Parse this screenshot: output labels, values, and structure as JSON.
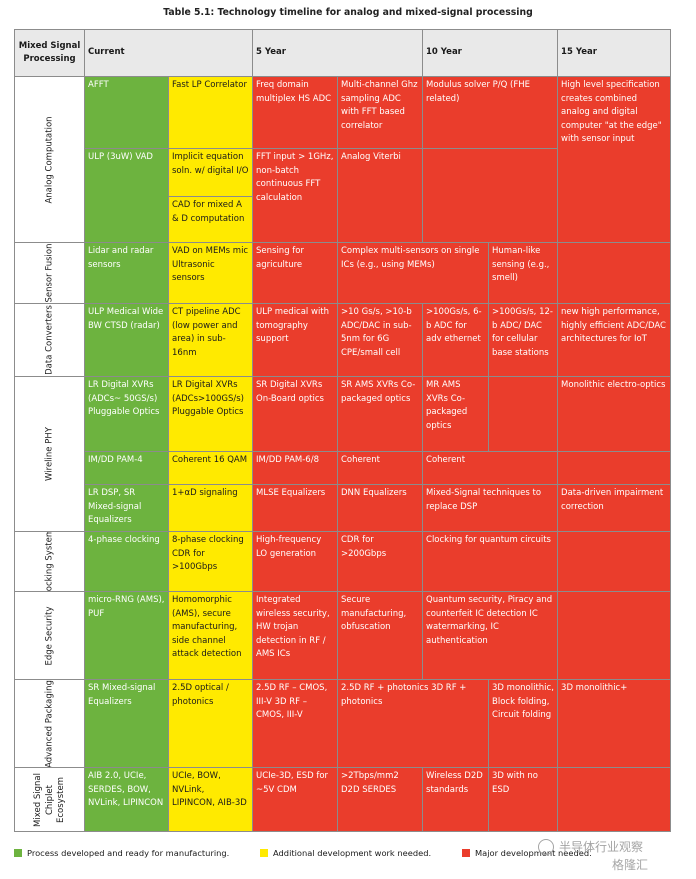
{
  "title": "Table 5.1: Technology timeline for analog and mixed-signal processing",
  "headers": {
    "category": "Mixed Signal Processing",
    "current": "Current",
    "y5": "5 Year",
    "y10": "10 Year",
    "y15": "15 Year"
  },
  "rows": {
    "analog": {
      "label": "Analog Computation",
      "c1": "AFFT",
      "c2": "Fast LP Correlator",
      "c3": "Freq domain multiplex HS ADC",
      "c4": "Multi-channel Ghz sampling ADC with FFT based correlator",
      "c5": "Modulus solver P/Q (FHE related)",
      "c6": "High level specification creates combined analog and digital computer \"at the edge\" with sensor input",
      "c7": "ULP (3uW) VAD",
      "c8": "Implicit equation soln. w/ digital I/O",
      "c9": "FFT input > 1GHz, non-batch continuous FFT calculation",
      "c10": "Analog Viterbi",
      "c11": "CAD for mixed A & D computation"
    },
    "sensor": {
      "label": "Sensor Fusion",
      "c1": "Lidar and radar sensors",
      "c2": "VAD on MEMs mic Ultrasonic sensors",
      "c3": "Sensing for agriculture",
      "c4": "Complex multi-sensors on single ICs (e.g., using MEMs)",
      "c5": "Human-like sensing (e.g., smell)"
    },
    "converters": {
      "label": "Data Converters",
      "c1": "ULP Medical Wide BW CTSD (radar)",
      "c2": "CT pipeline ADC (low power and area) in sub-16nm",
      "c3": "ULP medical with tomography support",
      "c4": ">10 Gs/s, >10-b ADC/DAC in sub-5nm for 6G CPE/small cell",
      "c5": ">100Gs/s, 6-b ADC for adv ethernet",
      "c6": ">100Gs/s, 12-b ADC/ DAC for cellular base stations",
      "c7": "new high performance, highly efficient ADC/DAC architectures for IoT"
    },
    "wireline": {
      "label": "Wireline PHY",
      "a1": "LR Digital XVRs (ADCs~ 50GS/s) Pluggable Optics",
      "a2": "LR Digital XVRs (ADCs>100GS/s) Pluggable Optics",
      "a3": "SR Digital XVRs On-Board optics",
      "a4": "SR AMS XVRs Co-packaged optics",
      "a5": "MR AMS XVRs Co-packaged optics",
      "a6": "Monolithic electro-optics",
      "b1": "IM/DD PAM-4",
      "b2": "Coherent 16 QAM",
      "b3": "IM/DD PAM-6/8",
      "b4": "Coherent",
      "b5": "Coherent",
      "c1": "LR DSP, SR Mixed-signal Equalizers",
      "c2": "1+αD signaling",
      "c3": "MLSE Equalizers",
      "c4": "DNN Equalizers",
      "c5": "Mixed-Signal techniques to replace DSP",
      "c6": "Data-driven impairment correction"
    },
    "clocking": {
      "label": "Clocking Systems",
      "c1": "4-phase clocking",
      "c2": "8-phase clocking CDR for >100Gbps",
      "c3": "High-frequency LO generation",
      "c4": "CDR for >200Gbps",
      "c5": "Clocking for quantum circuits"
    },
    "security": {
      "label": "Edge Security",
      "c1": "micro-RNG (AMS), PUF",
      "c2": "Homomorphic (AMS), secure manufacturing, side channel attack detection",
      "c3": "Integrated wireless security, HW trojan detection in RF / AMS ICs",
      "c4": "Secure manufacturing, obfuscation",
      "c5": "Quantum security, Piracy and counterfeit IC detection IC watermarking, IC authentication"
    },
    "packaging": {
      "label": "Advanced Packaging",
      "c1": "SR Mixed-signal Equalizers",
      "c2": "2.5D optical / photonics",
      "c3": "2.5D RF – CMOS, III-V 3D RF – CMOS, III-V",
      "c4": "2.5D RF + photonics 3D RF + photonics",
      "c5": "3D monolithic, Block folding, Circuit folding",
      "c6": "3D monolithic+"
    },
    "chiplet": {
      "label": "Mixed Signal Chiplet Ecosystem",
      "c1": "AIB 2.0, UCIe, SERDES, BOW, NVLink, LIPINCON",
      "c2": "UCIe, BOW, NVLink, LIPINCON, AIB-3D",
      "c3": "UCIe-3D, ESD for ~5V CDM",
      "c4": ">2Tbps/mm2 D2D SERDES",
      "c5": "Wireless D2D standards",
      "c6": "3D with no ESD"
    }
  },
  "legend": {
    "green": "Process developed and ready for manufacturing.",
    "yellow": "Additional development work needed.",
    "red": "Major development needed."
  },
  "watermark": {
    "line1": "半导体行业观察",
    "line2": "格隆汇"
  },
  "colors": {
    "green": "#6db33f",
    "yellow": "#ffea00",
    "red": "#ea3d2c",
    "header": "#e9e9e9"
  }
}
